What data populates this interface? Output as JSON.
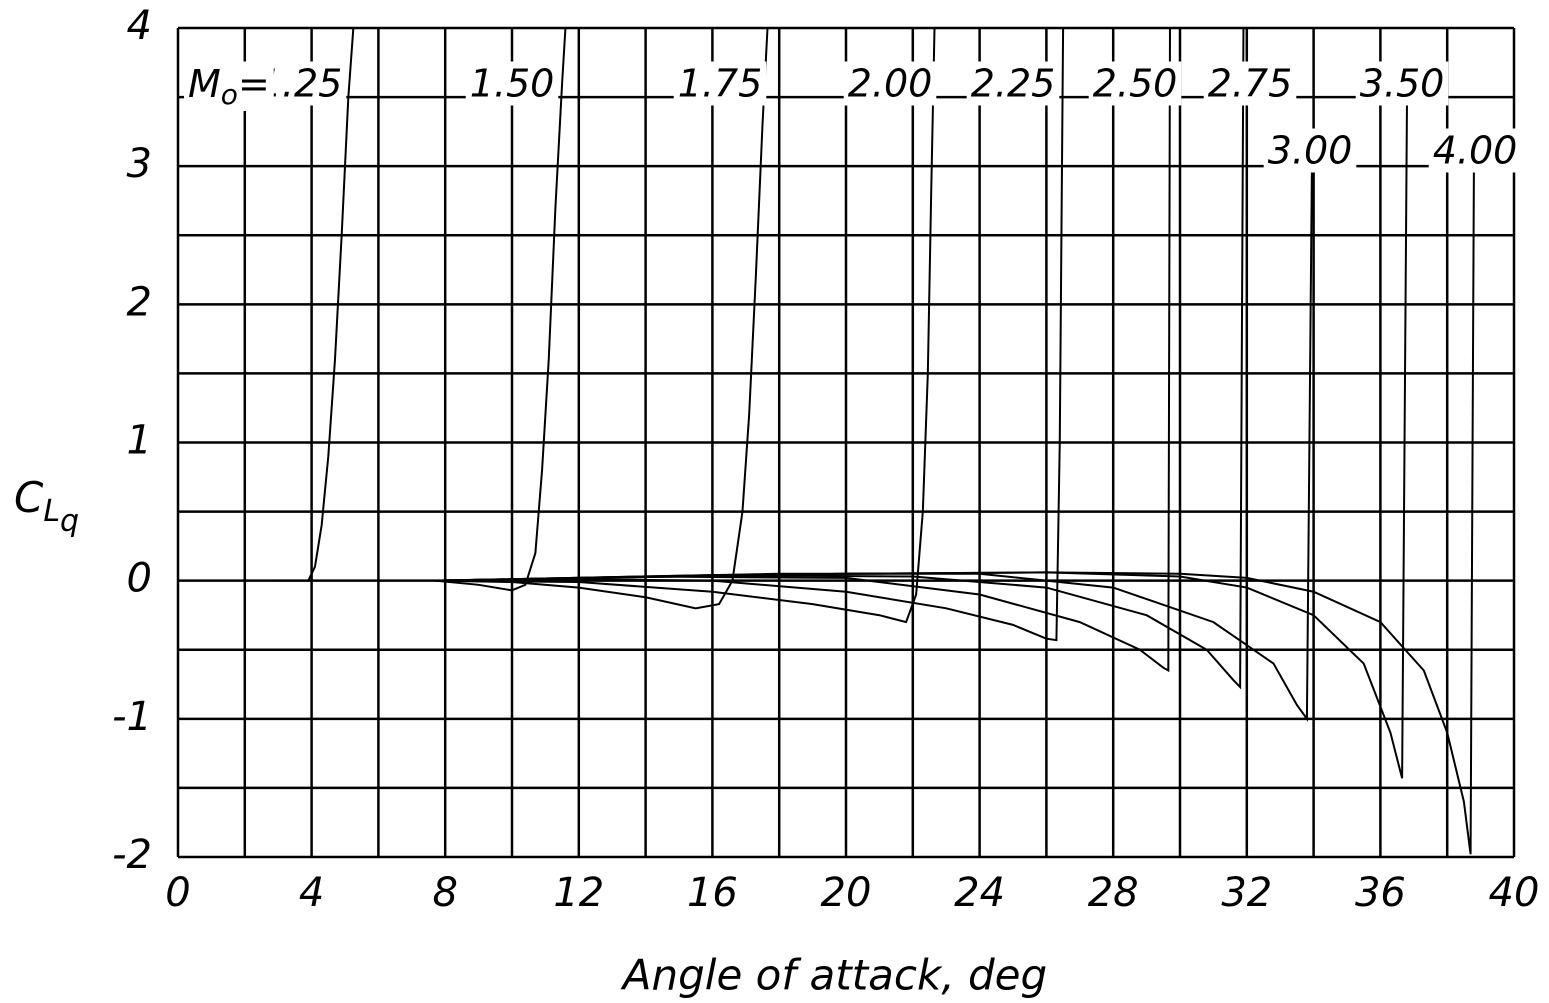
{
  "chart_data": {
    "type": "line",
    "x_label": "Angle of attack, deg",
    "y_label": {
      "main": "C",
      "sub1": "L",
      "sub2": "q"
    },
    "mach_prefix": {
      "symbol": "M",
      "sub": "o",
      "eq": "="
    },
    "xlim": [
      0,
      40
    ],
    "ylim": [
      -2,
      4
    ],
    "xticks": [
      0,
      4,
      8,
      12,
      16,
      20,
      24,
      28,
      32,
      36,
      40
    ],
    "yticks": [
      -2,
      -1,
      0,
      1,
      2,
      3,
      4
    ],
    "x_grid": [
      0,
      2,
      4,
      6,
      8,
      10,
      12,
      14,
      16,
      18,
      20,
      22,
      24,
      26,
      28,
      30,
      32,
      34,
      36,
      38,
      40
    ],
    "y_grid": [
      -2,
      -1.5,
      -1,
      -0.5,
      0,
      0.5,
      1,
      1.5,
      2,
      2.5,
      3,
      3.5,
      4
    ],
    "grid": true,
    "color": "#000000",
    "series": [
      {
        "name": "1.25",
        "x": [
          3.0,
          3.9,
          4.1,
          4.3,
          4.5,
          4.7,
          4.9,
          5.1,
          5.25
        ],
        "values": [
          0,
          0,
          0.1,
          0.4,
          0.9,
          1.6,
          2.5,
          3.5,
          4.0
        ]
      },
      {
        "name": "1.50",
        "x": [
          7.7,
          9,
          10,
          10.4,
          10.7,
          10.9,
          11.1,
          11.3,
          11.5,
          11.6
        ],
        "values": [
          0,
          -0.03,
          -0.07,
          -0.03,
          0.2,
          0.8,
          1.6,
          2.7,
          3.6,
          4.0
        ]
      },
      {
        "name": "1.75",
        "x": [
          7.7,
          10,
          12,
          14,
          15.5,
          16.2,
          16.6,
          16.9,
          17.1,
          17.3,
          17.5,
          17.65
        ],
        "values": [
          0,
          -0.01,
          -0.05,
          -0.12,
          -0.2,
          -0.17,
          0,
          0.5,
          1.2,
          2.2,
          3.3,
          4.0
        ]
      },
      {
        "name": "2.00",
        "x": [
          7.7,
          12,
          16,
          19,
          21,
          21.8,
          22.1,
          22.3,
          22.45,
          22.55,
          22.65
        ],
        "values": [
          0,
          -0.01,
          -0.08,
          -0.17,
          -0.25,
          -0.3,
          -0.1,
          0.5,
          1.5,
          2.8,
          4.0
        ]
      },
      {
        "name": "2.25",
        "x": [
          7.7,
          12,
          16,
          20,
          23,
          25,
          26,
          26.3,
          26.4,
          26.5
        ],
        "values": [
          0,
          0.01,
          0,
          -0.08,
          -0.2,
          -0.32,
          -0.42,
          -0.43,
          1,
          4
        ]
      },
      {
        "name": "2.50",
        "x": [
          7.7,
          14,
          20,
          24,
          27,
          28.8,
          29.5,
          29.65,
          29.7
        ],
        "values": [
          0,
          0.03,
          0.02,
          -0.1,
          -0.3,
          -0.5,
          -0.63,
          -0.65,
          4
        ]
      },
      {
        "name": "2.75",
        "x": [
          7.7,
          16,
          22,
          26,
          29,
          30.8,
          31.6,
          31.8,
          31.9
        ],
        "values": [
          0,
          0.04,
          0.03,
          -0.05,
          -0.25,
          -0.5,
          -0.72,
          -0.77,
          4
        ]
      },
      {
        "name": "3.00",
        "x": [
          7.7,
          18,
          24,
          28,
          31,
          32.8,
          33.5,
          33.8,
          33.95
        ],
        "values": [
          0,
          0.05,
          0.05,
          -0.05,
          -0.3,
          -0.6,
          -0.9,
          -1.0,
          3.0
        ]
      },
      {
        "name": "3.50",
        "x": [
          7.7,
          20,
          26,
          30,
          32,
          34,
          35.5,
          36.3,
          36.65,
          36.8
        ],
        "values": [
          0,
          0.05,
          0.06,
          0.03,
          -0.05,
          -0.25,
          -0.6,
          -1.1,
          -1.43,
          3.6
        ]
      },
      {
        "name": "4.00",
        "x": [
          7.7,
          20,
          26,
          30,
          32,
          34,
          36,
          37.3,
          38,
          38.5,
          38.7,
          38.8
        ],
        "values": [
          0,
          0.05,
          0.06,
          0.05,
          0.02,
          -0.08,
          -0.3,
          -0.65,
          -1.1,
          -1.6,
          -1.98,
          3.0
        ]
      }
    ]
  }
}
